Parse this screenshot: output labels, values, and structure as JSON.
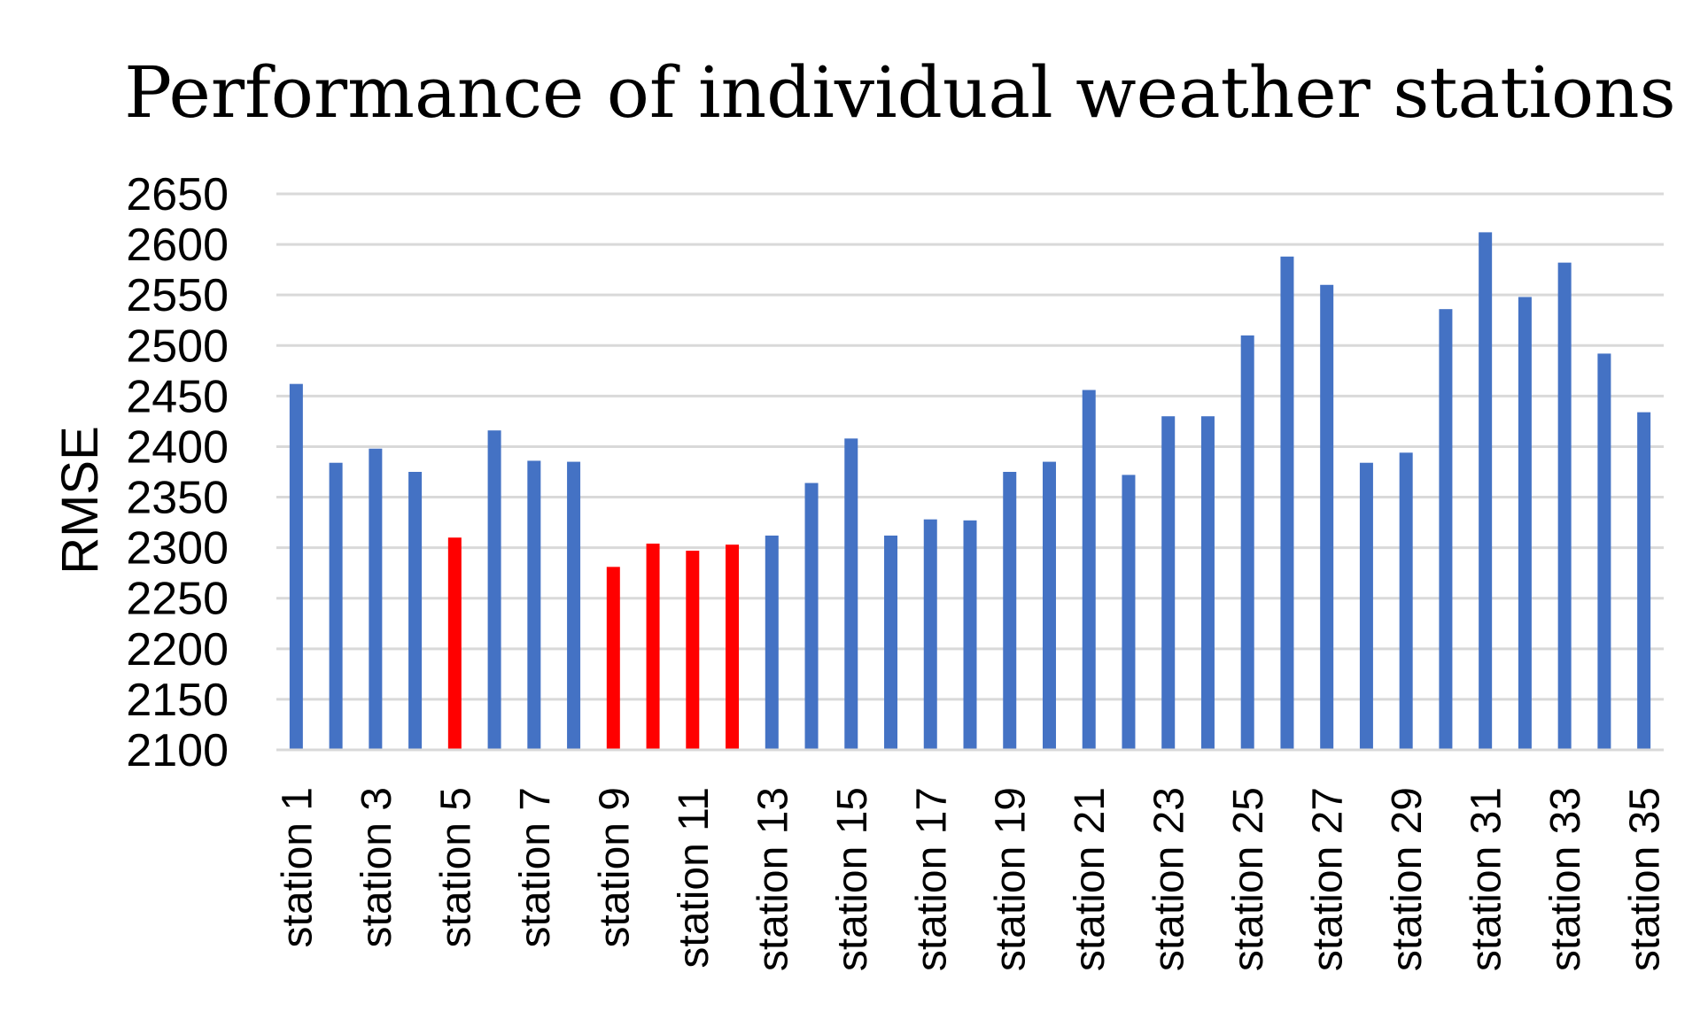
{
  "chart_data": {
    "type": "bar",
    "title": "Performance of individual weather stations",
    "xlabel": "",
    "ylabel": "RMSE",
    "ylim": [
      2100,
      2650
    ],
    "yticks": [
      2100,
      2150,
      2200,
      2250,
      2300,
      2350,
      2400,
      2450,
      2500,
      2550,
      2600,
      2650
    ],
    "grid": true,
    "legend": "none",
    "default_color": "#4472c4",
    "highlight_color": "#ff0000",
    "categories": [
      "station 1",
      "station 2",
      "station 3",
      "station 4",
      "station 5",
      "station 6",
      "station 7",
      "station 8",
      "station 9",
      "station 10",
      "station 11",
      "station 12",
      "station 13",
      "station 14",
      "station 15",
      "station 16",
      "station 17",
      "station 18",
      "station 19",
      "station 20",
      "station 21",
      "station 22",
      "station 23",
      "station 24",
      "station 25",
      "station 26",
      "station 27",
      "station 28",
      "station 29",
      "station 30",
      "station 31",
      "station 32",
      "station 33",
      "station 34",
      "station 35"
    ],
    "visible_tick_labels": [
      "station 1",
      "station 3",
      "station 5",
      "station 7",
      "station 9",
      "station 11",
      "station 13",
      "station 15",
      "station 17",
      "station 19",
      "station 21",
      "station 23",
      "station 25",
      "station 27",
      "station 29",
      "station 31",
      "station 33",
      "station 35"
    ],
    "values": [
      2462,
      2384,
      2398,
      2375,
      2310,
      2416,
      2386,
      2385,
      2281,
      2304,
      2297,
      2303,
      2312,
      2364,
      2408,
      2312,
      2328,
      2327,
      2375,
      2385,
      2456,
      2372,
      2430,
      2430,
      2510,
      2588,
      2560,
      2384,
      2394,
      2536,
      2612,
      2548,
      2582,
      2492,
      2434
    ],
    "highlighted": [
      "station 5",
      "station 9",
      "station 10",
      "station 11",
      "station 12"
    ]
  }
}
